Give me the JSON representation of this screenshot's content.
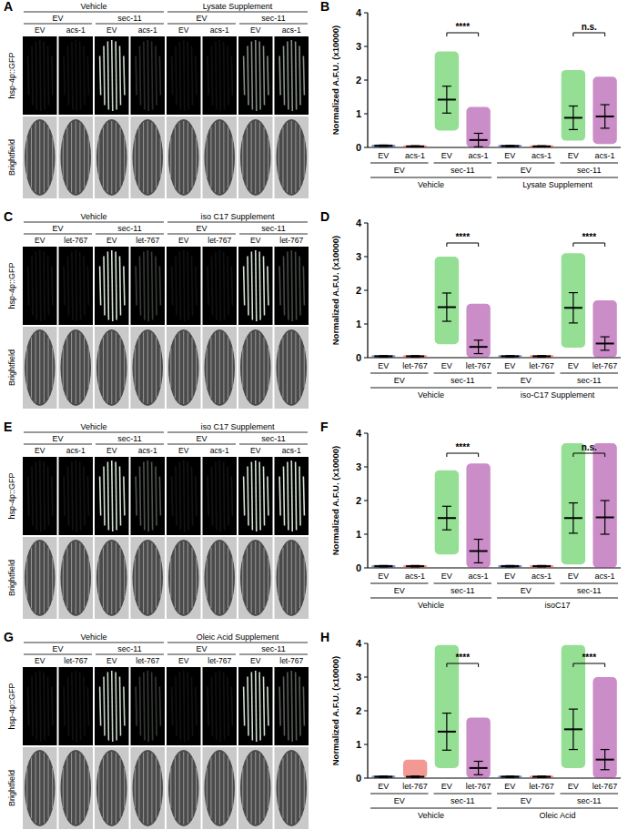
{
  "image_panels": [
    {
      "panel_label": "A",
      "treatments": [
        "Vehicle",
        "Lysate Supplement"
      ],
      "rnai": [
        "EV",
        "sec-11",
        "EV",
        "sec-11"
      ],
      "columns": [
        "EV",
        "acs-1",
        "EV",
        "acs-1",
        "EV",
        "acs-1",
        "EV",
        "acs-1"
      ],
      "rows": [
        "hsp-4p::GFP",
        "Brightfield"
      ]
    },
    {
      "panel_label": "C",
      "treatments": [
        "Vehicle",
        "iso C17 Supplement"
      ],
      "rnai": [
        "EV",
        "sec-11",
        "EV",
        "sec-11"
      ],
      "columns": [
        "EV",
        "let-767",
        "EV",
        "let-767",
        "EV",
        "let-767",
        "EV",
        "let-767"
      ],
      "rows": [
        "hsp-4p::GFP",
        "Brightfield"
      ]
    },
    {
      "panel_label": "E",
      "treatments": [
        "Vehicle",
        "iso C17 Supplement"
      ],
      "rnai": [
        "EV",
        "sec-11",
        "EV",
        "sec-11"
      ],
      "columns": [
        "EV",
        "acs-1",
        "EV",
        "acs-1",
        "EV",
        "acs-1",
        "EV",
        "acs-1"
      ],
      "rows": [
        "hsp-4p::GFP",
        "Brightfield"
      ]
    },
    {
      "panel_label": "G",
      "treatments": [
        "Vehicle",
        "Oleic Acid Supplement"
      ],
      "rnai": [
        "EV",
        "sec-11",
        "EV",
        "sec-11"
      ],
      "columns": [
        "EV",
        "let-767",
        "EV",
        "let-767",
        "EV",
        "let-767",
        "EV",
        "let-767"
      ],
      "rows": [
        "hsp-4p::GFP",
        "Brightfield"
      ]
    }
  ],
  "chart_data": [
    {
      "type": "dot_plot",
      "panel_label": "B",
      "y_label": "Normalized A.F.U. (x10000)",
      "categories": [
        "EV",
        "acs-1",
        "EV",
        "acs-1",
        "EV",
        "acs-1",
        "EV",
        "acs-1"
      ],
      "rnai_groups": [
        "EV",
        "sec-11",
        "EV",
        "sec-11"
      ],
      "treatment_groups": [
        "Vehicle",
        "Lysate Supplement"
      ],
      "values": [
        0.05,
        0.03,
        1.42,
        0.22,
        0.04,
        0.03,
        0.88,
        0.92
      ],
      "errors": [
        0.02,
        0.02,
        0.4,
        0.2,
        0.02,
        0.02,
        0.35,
        0.35
      ],
      "ranges": [
        [
          0.01,
          0.09
        ],
        [
          0.0,
          0.07
        ],
        [
          0.5,
          2.85
        ],
        [
          0.0,
          1.2
        ],
        [
          0.01,
          0.08
        ],
        [
          0.0,
          0.07
        ],
        [
          0.2,
          2.3
        ],
        [
          0.1,
          2.1
        ]
      ],
      "colors": [
        "#1c3f94",
        "#e8453c",
        "#3cc43c",
        "#a0309a",
        "#1c3f94",
        "#e8453c",
        "#3cc43c",
        "#a0309a"
      ],
      "significance": [
        {
          "from": 2,
          "to": 3,
          "label": "****"
        },
        {
          "from": 6,
          "to": 7,
          "label": "n.s."
        }
      ],
      "ylim": [
        0,
        4
      ],
      "yticks": [
        0,
        1,
        2,
        3,
        4
      ]
    },
    {
      "type": "dot_plot",
      "panel_label": "D",
      "y_label": "Normalized A.F.U. (x10000)",
      "categories": [
        "EV",
        "let-767",
        "EV",
        "let-767",
        "EV",
        "let-767",
        "EV",
        "let-767"
      ],
      "rnai_groups": [
        "EV",
        "sec-11",
        "EV",
        "sec-11"
      ],
      "treatment_groups": [
        "Vehicle",
        "iso-C17 Supplement"
      ],
      "values": [
        0.04,
        0.04,
        1.5,
        0.32,
        0.04,
        0.04,
        1.48,
        0.42
      ],
      "errors": [
        0.02,
        0.02,
        0.42,
        0.2,
        0.02,
        0.02,
        0.45,
        0.2
      ],
      "ranges": [
        [
          0.01,
          0.08
        ],
        [
          0.0,
          0.08
        ],
        [
          0.4,
          3.0
        ],
        [
          0.0,
          1.6
        ],
        [
          0.01,
          0.08
        ],
        [
          0.0,
          0.08
        ],
        [
          0.3,
          3.1
        ],
        [
          0.0,
          1.7
        ]
      ],
      "colors": [
        "#1c3f94",
        "#e8453c",
        "#3cc43c",
        "#a0309a",
        "#1c3f94",
        "#e8453c",
        "#3cc43c",
        "#a0309a"
      ],
      "significance": [
        {
          "from": 2,
          "to": 3,
          "label": "****"
        },
        {
          "from": 6,
          "to": 7,
          "label": "****"
        }
      ],
      "ylim": [
        0,
        4
      ],
      "yticks": [
        0,
        1,
        2,
        3,
        4
      ]
    },
    {
      "type": "dot_plot",
      "panel_label": "F",
      "y_label": "Normalized A.F.U. (x10000)",
      "categories": [
        "EV",
        "acs-1",
        "EV",
        "acs-1",
        "EV",
        "acs-1",
        "EV",
        "acs-1"
      ],
      "rnai_groups": [
        "EV",
        "sec-11",
        "EV",
        "sec-11"
      ],
      "treatment_groups": [
        "Vehicle",
        "isoC17"
      ],
      "values": [
        0.05,
        0.05,
        1.48,
        0.5,
        0.05,
        0.05,
        1.48,
        1.5
      ],
      "errors": [
        0.02,
        0.02,
        0.35,
        0.35,
        0.02,
        0.02,
        0.45,
        0.5
      ],
      "ranges": [
        [
          0.01,
          0.09
        ],
        [
          0.01,
          0.09
        ],
        [
          0.4,
          2.9
        ],
        [
          0.0,
          3.1
        ],
        [
          0.01,
          0.09
        ],
        [
          0.01,
          0.09
        ],
        [
          0.1,
          3.7
        ],
        [
          0.0,
          3.7
        ]
      ],
      "colors": [
        "#1c3f94",
        "#e8453c",
        "#3cc43c",
        "#a0309a",
        "#1c3f94",
        "#e8453c",
        "#3cc43c",
        "#a0309a"
      ],
      "significance": [
        {
          "from": 2,
          "to": 3,
          "label": "****"
        },
        {
          "from": 6,
          "to": 7,
          "label": "n.s."
        }
      ],
      "ylim": [
        0,
        4
      ],
      "yticks": [
        0,
        1,
        2,
        3,
        4
      ]
    },
    {
      "type": "dot_plot",
      "panel_label": "H",
      "y_label": "Normalized A.F.U. (x10000)",
      "categories": [
        "EV",
        "let-767",
        "EV",
        "let-767",
        "EV",
        "let-767",
        "EV",
        "let-767"
      ],
      "rnai_groups": [
        "EV",
        "sec-11",
        "EV",
        "sec-11"
      ],
      "treatment_groups": [
        "Vehicle",
        "Oleic Acid"
      ],
      "values": [
        0.04,
        0.04,
        1.38,
        0.3,
        0.04,
        0.04,
        1.45,
        0.55
      ],
      "errors": [
        0.02,
        0.02,
        0.55,
        0.2,
        0.02,
        0.02,
        0.6,
        0.3
      ],
      "ranges": [
        [
          0.01,
          0.08
        ],
        [
          0.0,
          0.55
        ],
        [
          0.3,
          3.95
        ],
        [
          0.0,
          1.8
        ],
        [
          0.01,
          0.08
        ],
        [
          0.0,
          0.08
        ],
        [
          0.3,
          3.95
        ],
        [
          0.0,
          3.0
        ]
      ],
      "colors": [
        "#1c3f94",
        "#e8453c",
        "#3cc43c",
        "#a0309a",
        "#1c3f94",
        "#e8453c",
        "#3cc43c",
        "#a0309a"
      ],
      "significance": [
        {
          "from": 2,
          "to": 3,
          "label": "****"
        },
        {
          "from": 6,
          "to": 7,
          "label": "****"
        }
      ],
      "ylim": [
        0,
        4
      ],
      "yticks": [
        0,
        1,
        2,
        3,
        4
      ]
    }
  ]
}
